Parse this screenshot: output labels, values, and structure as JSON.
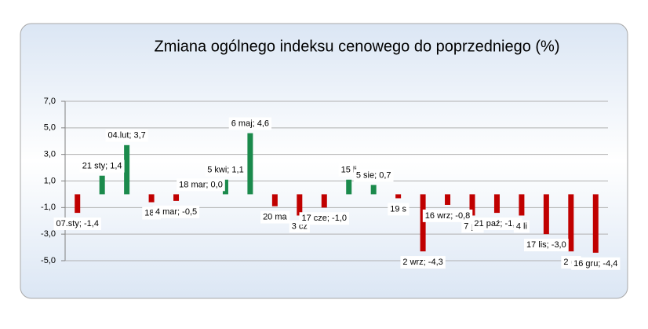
{
  "chart_data": {
    "type": "bar",
    "title": "Zmiana ogólnego indeksu cenowego do poprzedniego (%)",
    "values": [
      -1.4,
      1.4,
      3.7,
      -0.6,
      -0.5,
      0.0,
      1.1,
      4.6,
      -0.9,
      -1.6,
      -1.0,
      1.1,
      0.7,
      -0.3,
      -4.3,
      -0.8,
      -1.6,
      -1.4,
      -1.6,
      -3.0,
      -4.3,
      -4.4
    ],
    "value_labels": [
      "07.sty; -1,4",
      "21 sty; 1,4",
      "04.lut; 3,7",
      "18 l",
      "4 mar; -0,5",
      "18 mar; 0,0",
      "5 kwi; 1,1",
      "6 maj; 4,6",
      "20 ma",
      "3 cz",
      "17 cze; -1,0",
      "15 li",
      "5 sie; 0,7",
      "19 s",
      "2 wrz; -4,3",
      "16 wrz; -0,8",
      "7 pa",
      "21 paź; -1,4",
      "4 li",
      "17 lis; -3,0",
      "2 gr",
      "16 gru; -4,4"
    ],
    "positive_color": "#1b8a4c",
    "negative_color": "#c00000",
    "ylim": [
      -5,
      7
    ],
    "yticks": [
      {
        "value": -5,
        "label": "-5,0"
      },
      {
        "value": -3,
        "label": "-3,0"
      },
      {
        "value": -1,
        "label": "-1,0"
      },
      {
        "value": 1,
        "label": "1,0"
      },
      {
        "value": 3,
        "label": "3,0"
      },
      {
        "value": 5,
        "label": "5,0"
      },
      {
        "value": 7,
        "label": "7,0"
      }
    ],
    "grid": true
  }
}
